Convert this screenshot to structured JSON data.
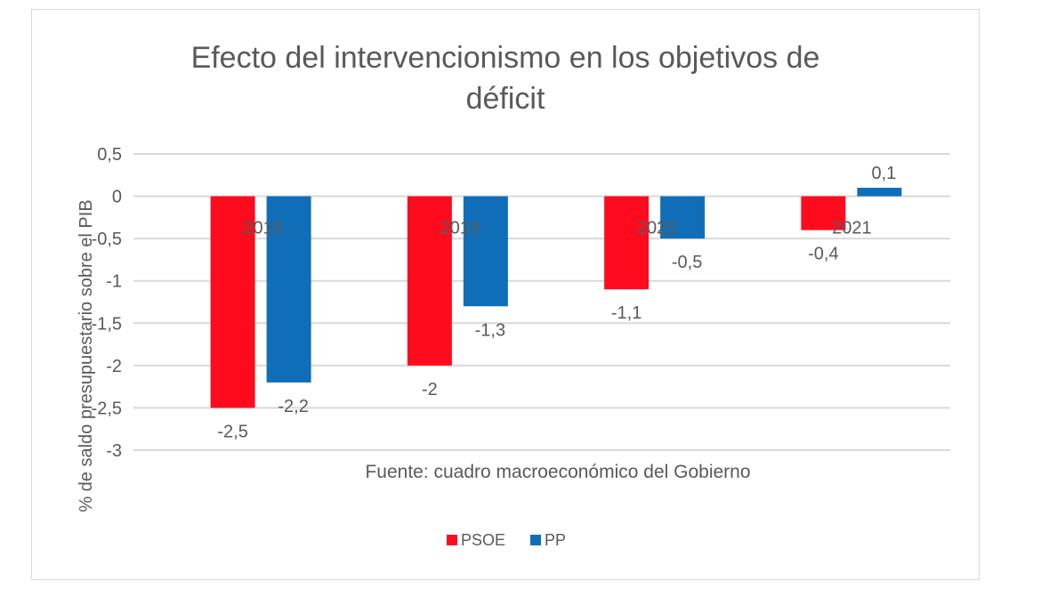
{
  "chart_data": {
    "type": "bar",
    "title_lines": [
      "Efecto del intervencionismo en los objetivos de",
      "déficit"
    ],
    "ylabel": "% de saldo presupuestario sobre el PIB",
    "xlabel": "Fuente: cuadro macroeconómico del Gobierno",
    "categories": [
      "2018",
      "2019",
      "2020",
      "2021"
    ],
    "series": [
      {
        "name": "PSOE",
        "color": "#FF0B1E",
        "values": [
          -2.5,
          -2,
          -1.1,
          -0.4
        ],
        "labels": [
          "-2,5",
          "-2",
          "-1,1",
          "-0,4"
        ]
      },
      {
        "name": "PP",
        "color": "#106EB8",
        "values": [
          -2.2,
          -1.3,
          -0.5,
          0.1
        ],
        "labels": [
          "-2,2",
          "-1,3",
          "-0,5",
          "0,1"
        ]
      }
    ],
    "ylim": [
      -3,
      0.5
    ],
    "yticks": [
      0.5,
      0,
      -0.5,
      -1,
      -1.5,
      -2,
      -2.5,
      -3
    ],
    "ytick_labels": [
      "0,5",
      "0",
      "-0,5",
      "-1",
      "-1,5",
      "-2",
      "-2,5",
      "-3"
    ],
    "grid": true,
    "legend": "bottom"
  }
}
